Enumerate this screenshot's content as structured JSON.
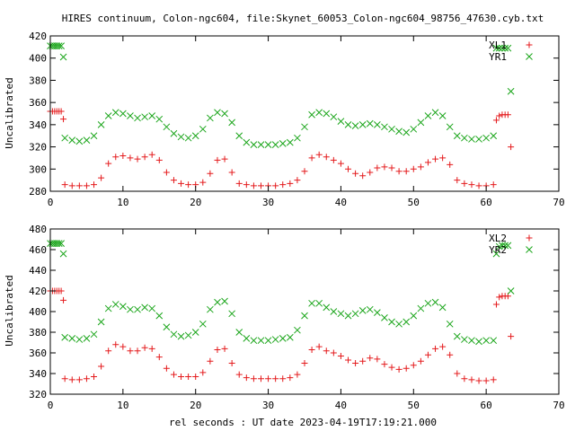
{
  "title": "HIRES continuum, Colon-ngc604, file:Skynet_60053_Colon-ngc604_98756_47630.cyb.txt",
  "xlabel": "rel seconds : UT date 2023-04-19T17:19:21.000",
  "colors": {
    "red": "#e41a1c",
    "green": "#1aa51a",
    "axis": "#000000"
  },
  "chart_data": [
    {
      "type": "scatter",
      "ylabel": "Uncalibrated",
      "xlim": [
        0,
        70
      ],
      "ylim": [
        280,
        420
      ],
      "xticks": [
        "0",
        "10",
        "20",
        "30",
        "40",
        "50",
        "60",
        "70"
      ],
      "yticks": [
        "280",
        "300",
        "320",
        "340",
        "360",
        "380",
        "400",
        "420"
      ],
      "legend_position": "top-right",
      "series": [
        {
          "name": "XL1",
          "marker": "plus",
          "color": "red",
          "segments": [
            {
              "x": [
                0,
                0.3,
                0.6,
                0.9,
                1.2,
                1.5
              ],
              "y": [
                352,
                352,
                352,
                352,
                352,
                352
              ]
            },
            {
              "x": [
                1.8
              ],
              "y": [
                345
              ]
            },
            {
              "x": [
                2,
                3,
                4,
                5,
                6,
                7,
                8,
                9,
                10,
                11,
                12,
                13,
                14,
                15,
                16,
                17,
                18,
                19,
                20,
                21,
                22,
                23,
                24,
                25,
                26,
                27,
                28,
                29,
                30,
                31,
                32,
                33,
                34,
                35,
                36,
                37,
                38,
                39,
                40,
                41,
                42,
                43,
                44,
                45,
                46,
                47,
                48,
                49,
                50,
                51,
                52,
                53,
                54,
                55,
                56,
                57,
                58,
                59,
                60,
                61
              ],
              "y": [
                286,
                285,
                285,
                285,
                286,
                292,
                305,
                311,
                312,
                310,
                309,
                311,
                313,
                308,
                297,
                290,
                287,
                286,
                286,
                288,
                296,
                308,
                309,
                297,
                287,
                286,
                285,
                285,
                285,
                285,
                286,
                287,
                290,
                298,
                310,
                313,
                311,
                308,
                305,
                300,
                296,
                294,
                297,
                301,
                302,
                301,
                298,
                298,
                300,
                302,
                306,
                309,
                310,
                304,
                290,
                287,
                286,
                285,
                285,
                286
              ]
            },
            {
              "x": [
                61.4,
                61.8,
                62.2,
                62.6,
                63.0
              ],
              "y": [
                344,
                348,
                349,
                349,
                349
              ]
            },
            {
              "x": [
                63.4
              ],
              "y": [
                320
              ]
            }
          ]
        },
        {
          "name": "YR1",
          "marker": "cross",
          "color": "green",
          "segments": [
            {
              "x": [
                0,
                0.3,
                0.6,
                0.9,
                1.2,
                1.5
              ],
              "y": [
                411,
                411,
                411,
                411,
                411,
                411
              ]
            },
            {
              "x": [
                1.8
              ],
              "y": [
                401
              ]
            },
            {
              "x": [
                2,
                3,
                4,
                5,
                6,
                7,
                8,
                9,
                10,
                11,
                12,
                13,
                14,
                15,
                16,
                17,
                18,
                19,
                20,
                21,
                22,
                23,
                24,
                25,
                26,
                27,
                28,
                29,
                30,
                31,
                32,
                33,
                34,
                35,
                36,
                37,
                38,
                39,
                40,
                41,
                42,
                43,
                44,
                45,
                46,
                47,
                48,
                49,
                50,
                51,
                52,
                53,
                54,
                55,
                56,
                57,
                58,
                59,
                60,
                61
              ],
              "y": [
                328,
                326,
                325,
                326,
                330,
                340,
                348,
                351,
                350,
                348,
                346,
                347,
                348,
                345,
                338,
                332,
                329,
                328,
                330,
                336,
                346,
                351,
                350,
                342,
                330,
                324,
                322,
                322,
                322,
                322,
                323,
                324,
                328,
                338,
                349,
                351,
                350,
                347,
                343,
                340,
                339,
                340,
                341,
                340,
                338,
                336,
                334,
                333,
                336,
                342,
                348,
                351,
                348,
                338,
                330,
                328,
                327,
                327,
                328,
                330
              ]
            },
            {
              "x": [
                61.4,
                61.8,
                62.2,
                62.6,
                63.0
              ],
              "y": [
                409,
                409,
                409,
                409,
                409
              ]
            },
            {
              "x": [
                63.4
              ],
              "y": [
                370
              ]
            }
          ]
        }
      ]
    },
    {
      "type": "scatter",
      "ylabel": "Uncalibrated",
      "xlim": [
        0,
        70
      ],
      "ylim": [
        320,
        480
      ],
      "xticks": [
        "0",
        "10",
        "20",
        "30",
        "40",
        "50",
        "60",
        "70"
      ],
      "yticks": [
        "320",
        "340",
        "360",
        "380",
        "400",
        "420",
        "440",
        "460",
        "480"
      ],
      "legend_position": "top-right",
      "series": [
        {
          "name": "XL2",
          "marker": "plus",
          "color": "red",
          "segments": [
            {
              "x": [
                0,
                0.3,
                0.6,
                0.9,
                1.2,
                1.5
              ],
              "y": [
                420,
                420,
                420,
                420,
                420,
                420
              ]
            },
            {
              "x": [
                1.8
              ],
              "y": [
                411
              ]
            },
            {
              "x": [
                2,
                3,
                4,
                5,
                6,
                7,
                8,
                9,
                10,
                11,
                12,
                13,
                14,
                15,
                16,
                17,
                18,
                19,
                20,
                21,
                22,
                23,
                24,
                25,
                26,
                27,
                28,
                29,
                30,
                31,
                32,
                33,
                34,
                35,
                36,
                37,
                38,
                39,
                40,
                41,
                42,
                43,
                44,
                45,
                46,
                47,
                48,
                49,
                50,
                51,
                52,
                53,
                54,
                55,
                56,
                57,
                58,
                59,
                60,
                61
              ],
              "y": [
                335,
                334,
                334,
                335,
                337,
                347,
                362,
                368,
                366,
                362,
                362,
                365,
                364,
                356,
                345,
                339,
                337,
                337,
                337,
                341,
                352,
                363,
                364,
                350,
                339,
                336,
                335,
                335,
                335,
                335,
                335,
                336,
                339,
                350,
                363,
                366,
                362,
                360,
                357,
                353,
                350,
                352,
                355,
                354,
                349,
                346,
                344,
                345,
                348,
                352,
                358,
                364,
                366,
                358,
                340,
                335,
                334,
                333,
                333,
                334
              ]
            },
            {
              "x": [
                61.4,
                61.8,
                62.2,
                62.6,
                63.0
              ],
              "y": [
                407,
                414,
                415,
                415,
                415
              ]
            },
            {
              "x": [
                63.4
              ],
              "y": [
                376
              ]
            }
          ]
        },
        {
          "name": "YR2",
          "marker": "cross",
          "color": "green",
          "segments": [
            {
              "x": [
                0,
                0.3,
                0.6,
                0.9,
                1.2,
                1.5
              ],
              "y": [
                466,
                466,
                466,
                466,
                466,
                466
              ]
            },
            {
              "x": [
                1.8
              ],
              "y": [
                456
              ]
            },
            {
              "x": [
                2,
                3,
                4,
                5,
                6,
                7,
                8,
                9,
                10,
                11,
                12,
                13,
                14,
                15,
                16,
                17,
                18,
                19,
                20,
                21,
                22,
                23,
                24,
                25,
                26,
                27,
                28,
                29,
                30,
                31,
                32,
                33,
                34,
                35,
                36,
                37,
                38,
                39,
                40,
                41,
                42,
                43,
                44,
                45,
                46,
                47,
                48,
                49,
                50,
                51,
                52,
                53,
                54,
                55,
                56,
                57,
                58,
                59,
                60,
                61
              ],
              "y": [
                375,
                374,
                373,
                374,
                378,
                390,
                403,
                407,
                405,
                402,
                402,
                404,
                403,
                396,
                385,
                378,
                376,
                377,
                380,
                388,
                402,
                409,
                410,
                398,
                380,
                374,
                372,
                372,
                372,
                373,
                374,
                375,
                382,
                396,
                408,
                408,
                404,
                400,
                398,
                396,
                398,
                401,
                402,
                399,
                394,
                390,
                388,
                390,
                396,
                403,
                408,
                409,
                404,
                388,
                376,
                373,
                372,
                371,
                372,
                372
              ]
            },
            {
              "x": [
                61.4,
                61.8,
                62.2,
                62.6,
                63.0
              ],
              "y": [
                456,
                463,
                464,
                464,
                464
              ]
            },
            {
              "x": [
                63.4
              ],
              "y": [
                420
              ]
            }
          ]
        }
      ]
    }
  ]
}
